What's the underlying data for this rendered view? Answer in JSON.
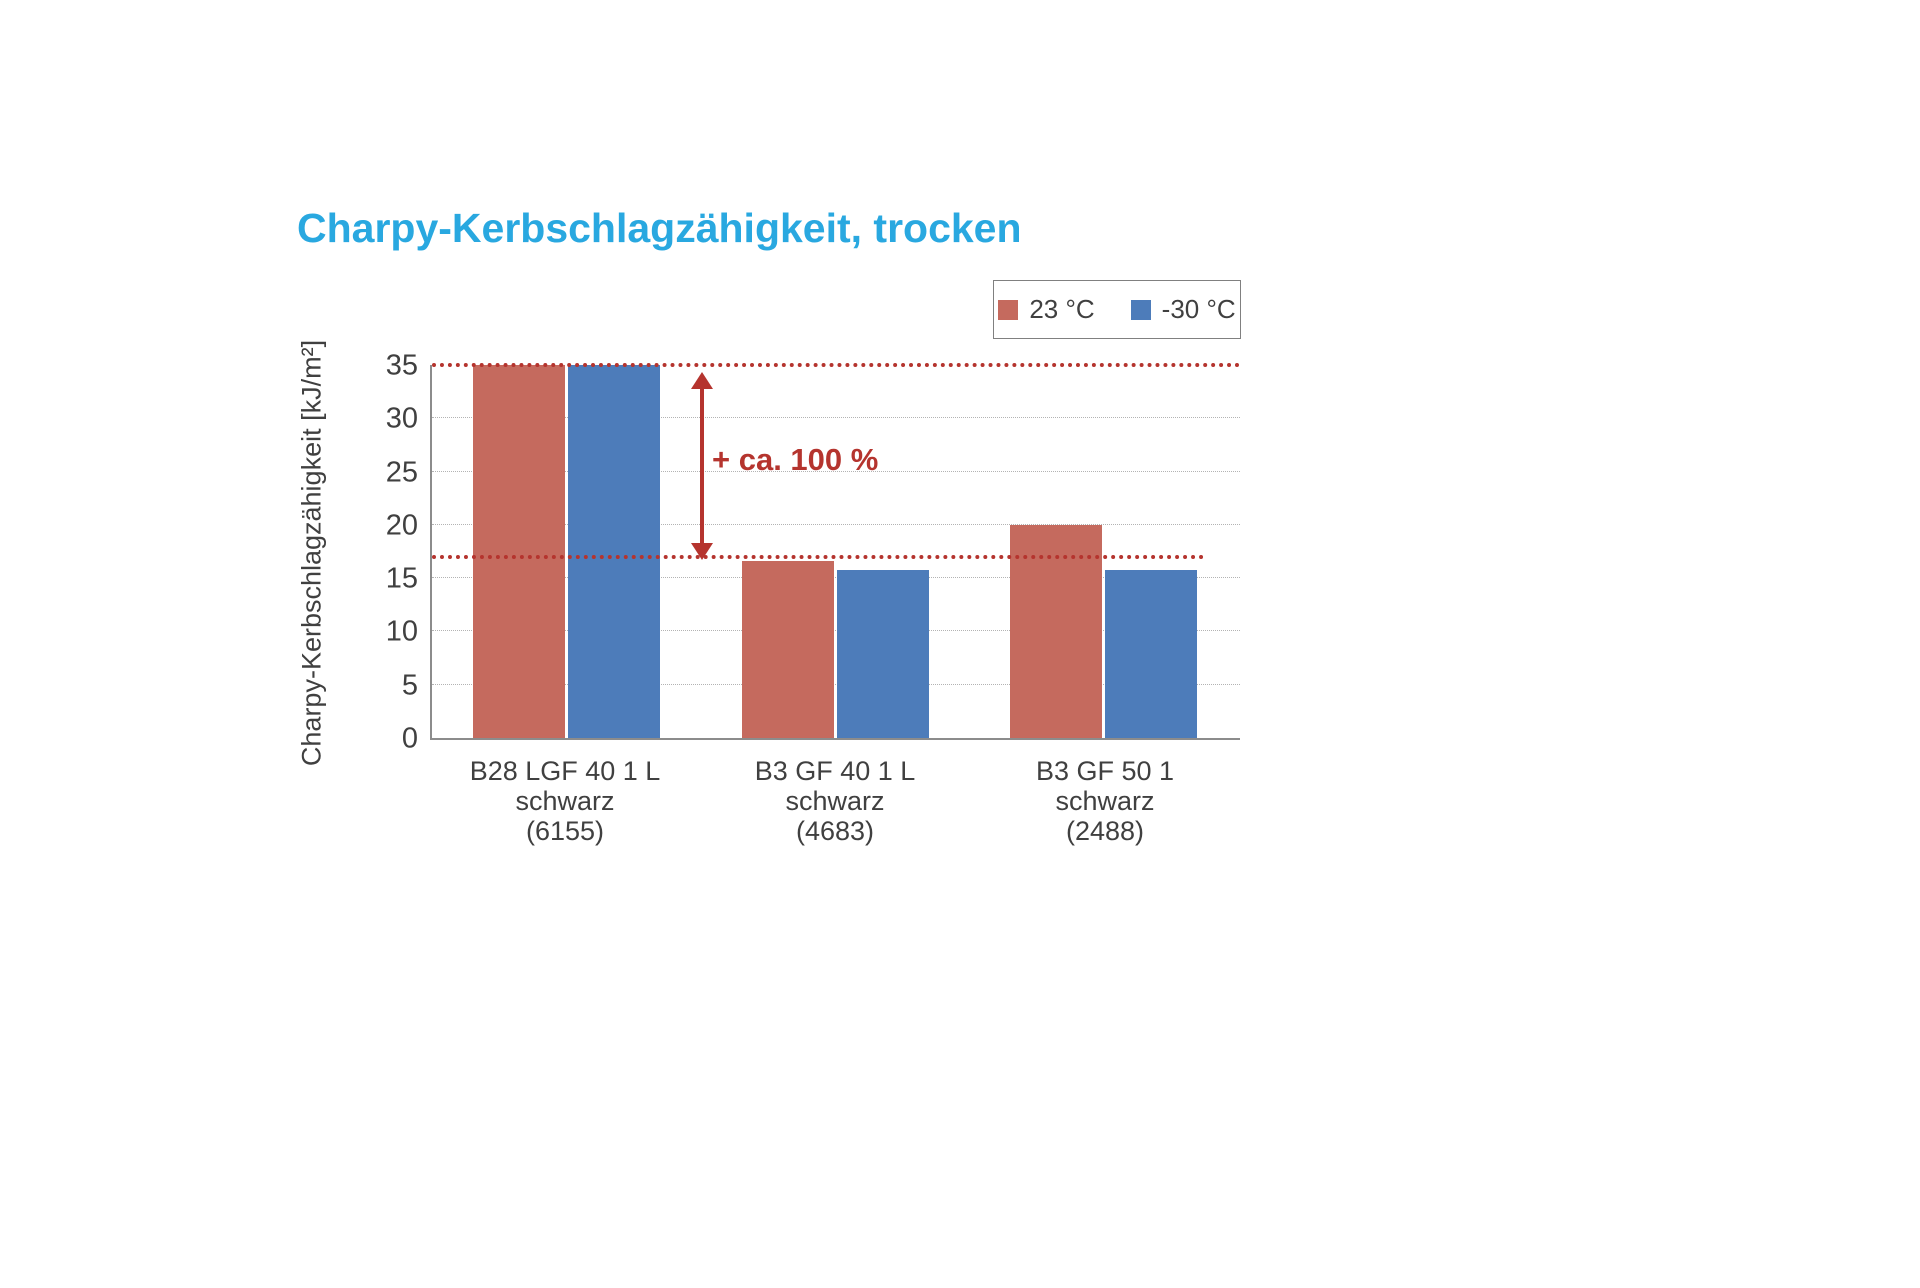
{
  "title": "Charpy-Kerbschlagzähigkeit, trocken",
  "title_color": "#29a8e0",
  "legend": {
    "items": [
      {
        "label": "23 °C",
        "color": "#c56a5e"
      },
      {
        "label": "-30 °C",
        "color": "#4d7cba"
      }
    ]
  },
  "chart_data": {
    "type": "bar",
    "categories": [
      [
        "B28 LGF 40 1 L",
        "schwarz",
        "(6155)"
      ],
      [
        "B3 GF 40 1 L",
        "schwarz",
        "(4683)"
      ],
      [
        "B3 GF 50 1",
        "schwarz",
        "(2488)"
      ]
    ],
    "series": [
      {
        "name": "23 °C",
        "color": "#c56a5e",
        "values": [
          35,
          16.6,
          20
        ]
      },
      {
        "name": "-30 °C",
        "color": "#4d7cba",
        "values": [
          35,
          15.8,
          15.8
        ]
      }
    ],
    "title": "Charpy-Kerbschlagzähigkeit, trocken",
    "xlabel": "",
    "ylabel": "Charpy-Kerbschlagzähigkeit [kJ/m²]",
    "ylim": [
      0,
      35
    ],
    "yticks": [
      0,
      5,
      10,
      15,
      20,
      25,
      30,
      35
    ],
    "grid": "horizontal-dotted",
    "legend_position": "top-right",
    "annotations": {
      "reference_lines": [
        {
          "value": 35,
          "style": "dotted",
          "color": "#b5342e",
          "width_pct": 100
        },
        {
          "value": 17,
          "style": "dotted",
          "color": "#b5342e",
          "width_pct": 95.5
        }
      ],
      "arrow_label": "+ ca. 100 %",
      "arrow_from": 35,
      "arrow_to": 17
    }
  }
}
